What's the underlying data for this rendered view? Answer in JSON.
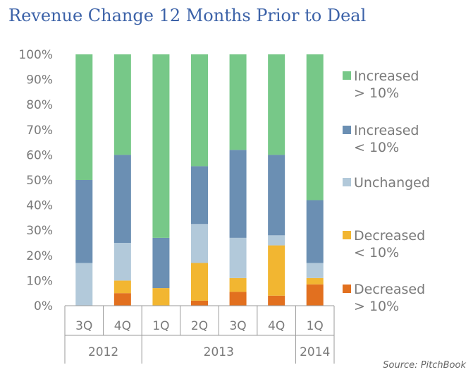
{
  "chart_data": {
    "type": "bar",
    "stacked": true,
    "normalized": true,
    "title": "Revenue Change 12 Months Prior to Deal",
    "source": "Source: PitchBook",
    "categories": [
      "3Q",
      "4Q",
      "1Q",
      "2Q",
      "3Q",
      "4Q",
      "1Q"
    ],
    "year_groups": [
      {
        "label": "2012",
        "span": 2
      },
      {
        "label": "2013",
        "span": 4
      },
      {
        "label": "2014",
        "span": 1
      }
    ],
    "ylim": [
      0,
      100
    ],
    "yticks": [
      "0%",
      "10%",
      "20%",
      "30%",
      "40%",
      "50%",
      "60%",
      "70%",
      "80%",
      "90%",
      "100%"
    ],
    "grid": false,
    "legend_position": "right",
    "series": [
      {
        "name": "Decreased > 10%",
        "legend_lines": [
          "Decreased",
          "> 10%"
        ],
        "color": "#e2701f",
        "values": [
          0,
          5,
          0,
          2,
          5.5,
          4,
          8.5
        ]
      },
      {
        "name": "Decreased < 10%",
        "legend_lines": [
          "Decreased",
          "< 10%"
        ],
        "color": "#f2b631",
        "values": [
          0,
          5,
          7,
          15,
          5.5,
          20,
          2.5
        ]
      },
      {
        "name": "Unchanged",
        "legend_lines": [
          "Unchanged"
        ],
        "color": "#b2c9da",
        "values": [
          17,
          15,
          0,
          15.5,
          16,
          4,
          6
        ]
      },
      {
        "name": "Increased < 10%",
        "legend_lines": [
          "Increased",
          "< 10%"
        ],
        "color": "#6b8fb3",
        "values": [
          33,
          35,
          20,
          23,
          35,
          32,
          25
        ]
      },
      {
        "name": "Increased > 10%",
        "legend_lines": [
          "Increased",
          "> 10%"
        ],
        "color": "#77c888",
        "values": [
          50,
          40,
          73,
          44.5,
          38,
          40,
          58
        ]
      }
    ]
  }
}
